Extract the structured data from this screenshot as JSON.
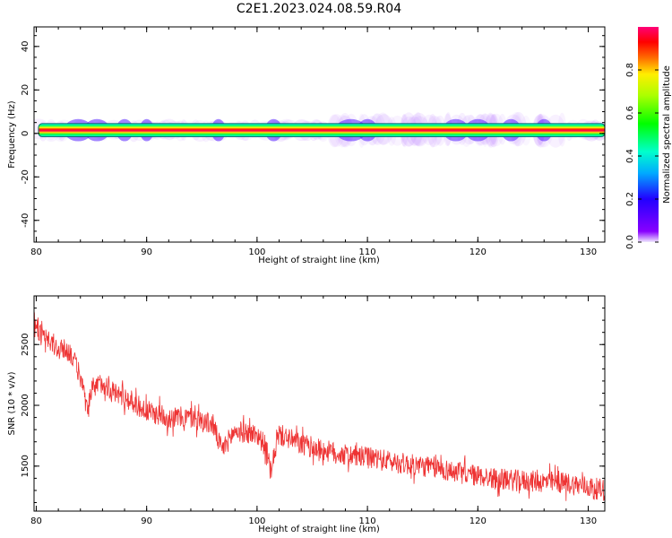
{
  "title": "C2E1.2023.024.08.59.R04",
  "chart_data": [
    {
      "type": "heatmap",
      "xlabel": "Height of straight line (km)",
      "ylabel": "Frequency (Hz)",
      "xlim": [
        79.8,
        131.5
      ],
      "ylim": [
        -50,
        49
      ],
      "xticks": [
        80,
        90,
        100,
        110,
        120,
        130
      ],
      "yticks": [
        40,
        20,
        0,
        -20,
        -40
      ],
      "band_center_hz": 1.5,
      "band_halfwidth_hz": 3,
      "colorbar": {
        "label": "Normalized spectral amplitude",
        "ticks": [
          0.0,
          0.2,
          0.4,
          0.6,
          0.8
        ],
        "range": [
          0,
          1
        ]
      },
      "grid": false
    },
    {
      "type": "line",
      "xlabel": "Height of straight line (km)",
      "ylabel": "SNR (10 * v/v)",
      "xlim": [
        79.8,
        131.5
      ],
      "ylim": [
        1130,
        2900
      ],
      "xticks": [
        80,
        90,
        100,
        110,
        120,
        130
      ],
      "yticks": [
        1500,
        2000,
        2500
      ],
      "line_color": "#ee3333",
      "trend": {
        "x": [
          79.8,
          80.5,
          82,
          83,
          84,
          84.7,
          85,
          86,
          87,
          88,
          90,
          92,
          94,
          96,
          96.8,
          98,
          100,
          100.8,
          101.3,
          101.7,
          102,
          104,
          106,
          108,
          110,
          112,
          114,
          116,
          118,
          120,
          122,
          124,
          126,
          128,
          130,
          131.5
        ],
        "y": [
          2720,
          2560,
          2460,
          2450,
          2240,
          1910,
          2130,
          2190,
          2110,
          2070,
          1950,
          1900,
          1900,
          1840,
          1630,
          1790,
          1760,
          1660,
          1420,
          1700,
          1760,
          1680,
          1630,
          1590,
          1570,
          1540,
          1510,
          1490,
          1450,
          1420,
          1390,
          1380,
          1370,
          1360,
          1330,
          1300
        ]
      },
      "noise_amplitude": 90,
      "grid": false
    }
  ]
}
